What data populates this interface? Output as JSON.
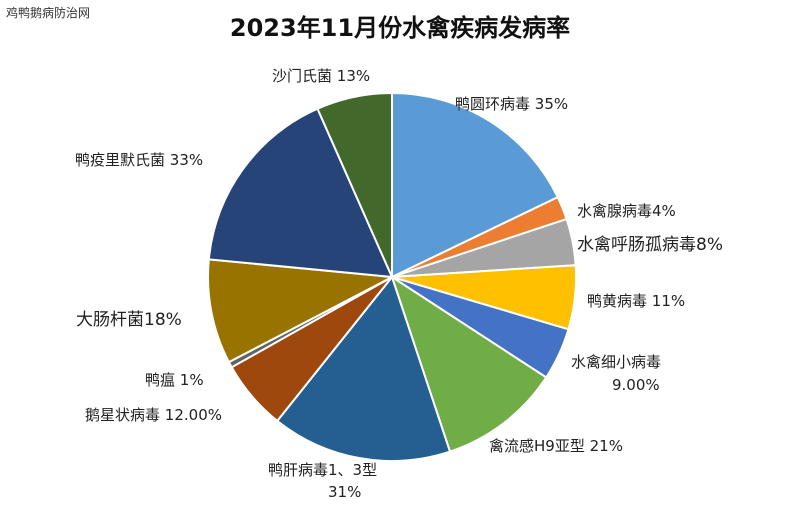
{
  "watermark": "鸡鸭鹅病防治网",
  "chart_data": {
    "type": "pie",
    "title": "2023年11月份水禽疾病发病率",
    "slices": [
      {
        "name": "鸭圆环病毒",
        "value_label": "35%",
        "value": 35,
        "color": "#5b9bd5"
      },
      {
        "name": "水禽腺病毒",
        "value_label": "4%",
        "value": 4,
        "color": "#ed7d31"
      },
      {
        "name": "水禽呼肠孤病毒",
        "value_label": "8%",
        "value": 8,
        "color": "#a5a5a5"
      },
      {
        "name": "鸭黄病毒",
        "value_label": "11%",
        "value": 11,
        "color": "#ffc000"
      },
      {
        "name": "水禽细小病毒",
        "value_label": "9.00%",
        "value": 9,
        "color": "#4472c4"
      },
      {
        "name": "禽流感H9亚型",
        "value_label": "21%",
        "value": 21,
        "color": "#70ad47"
      },
      {
        "name": "鸭肝病毒1、3型",
        "value_label": "31%",
        "value": 31,
        "color": "#255e91"
      },
      {
        "name": "鹅星状病毒",
        "value_label": "12.00%",
        "value": 12,
        "color": "#9e480e"
      },
      {
        "name": "鸭瘟",
        "value_label": "1%",
        "value": 1,
        "color": "#636363"
      },
      {
        "name": "大肠杆菌",
        "value_label": "18%",
        "value": 18,
        "color": "#997300"
      },
      {
        "name": "鸭疫里默氏菌",
        "value_label": "33%",
        "value": 33,
        "color": "#264478"
      },
      {
        "name": "沙门氏菌",
        "value_label": "13%",
        "value": 13,
        "color": "#43682b"
      }
    ]
  }
}
